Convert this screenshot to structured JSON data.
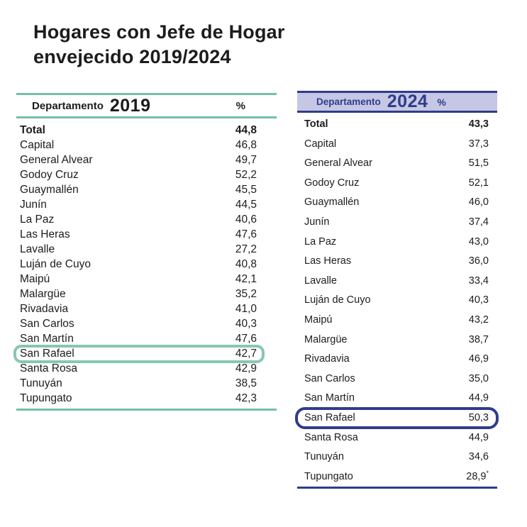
{
  "title": "Hogares con Jefe de Hogar envejecido 2019/2024",
  "colors": {
    "teal": "#74c0a3",
    "teal_hl": "#87c7af",
    "navy": "#2f3c8d",
    "lavender": "#c6c7e4",
    "text": "#1c1c1c"
  },
  "tables": [
    {
      "id": "rows-2019",
      "header": {
        "label": "Departamento",
        "year": "2019",
        "percent": "%"
      },
      "highlight": "San Rafael",
      "rows": [
        {
          "name": "Total",
          "value": "44,8",
          "bold": true
        },
        {
          "name": "Capital",
          "value": "46,8"
        },
        {
          "name": "General Alvear",
          "value": "49,7"
        },
        {
          "name": "Godoy Cruz",
          "value": "52,2"
        },
        {
          "name": "Guaymallén",
          "value": "45,5"
        },
        {
          "name": "Junín",
          "value": "44,5"
        },
        {
          "name": "La Paz",
          "value": "40,6"
        },
        {
          "name": "Las Heras",
          "value": "47,6"
        },
        {
          "name": "Lavalle",
          "value": "27,2"
        },
        {
          "name": "Luján de Cuyo",
          "value": "40,8"
        },
        {
          "name": "Maipú",
          "value": "42,1"
        },
        {
          "name": "Malargüe",
          "value": "35,2"
        },
        {
          "name": "Rivadavia",
          "value": "41,0"
        },
        {
          "name": "San Carlos",
          "value": "40,3"
        },
        {
          "name": "San Martín",
          "value": "47,6"
        },
        {
          "name": "San Rafael",
          "value": "42,7"
        },
        {
          "name": "Santa Rosa",
          "value": "42,9"
        },
        {
          "name": "Tunuyán",
          "value": "38,5"
        },
        {
          "name": "Tupungato",
          "value": "42,3"
        }
      ]
    },
    {
      "id": "rows-2024",
      "header": {
        "label": "Departamento",
        "year": "2024",
        "percent": "%"
      },
      "highlight": "San Rafael",
      "rows": [
        {
          "name": "Total",
          "value": "43,3",
          "bold": true
        },
        {
          "name": "Capital",
          "value": "37,3"
        },
        {
          "name": "General Alvear",
          "value": "51,5"
        },
        {
          "name": "Godoy Cruz",
          "value": "52,1"
        },
        {
          "name": "Guaymallén",
          "value": "46,0"
        },
        {
          "name": "Junín",
          "value": "37,4"
        },
        {
          "name": "La Paz",
          "value": "43,0"
        },
        {
          "name": "Las Heras",
          "value": "36,0"
        },
        {
          "name": "Lavalle",
          "value": "33,4"
        },
        {
          "name": "Luján de Cuyo",
          "value": "40,3"
        },
        {
          "name": "Maipú",
          "value": "43,2"
        },
        {
          "name": "Malargüe",
          "value": "38,7"
        },
        {
          "name": "Rivadavia",
          "value": "46,9"
        },
        {
          "name": "San Carlos",
          "value": "35,0"
        },
        {
          "name": "San Martín",
          "value": "44,9"
        },
        {
          "name": "San Rafael",
          "value": "50,3"
        },
        {
          "name": "Santa Rosa",
          "value": "44,9"
        },
        {
          "name": "Tunuyán",
          "value": "34,6"
        },
        {
          "name": "Tupungato",
          "value": "28,9",
          "note": "*"
        }
      ]
    }
  ],
  "chart_data": {
    "type": "table",
    "title": "Hogares con Jefe de Hogar envejecido 2019/2024",
    "categories": [
      "Total",
      "Capital",
      "General Alvear",
      "Godoy Cruz",
      "Guaymallén",
      "Junín",
      "La Paz",
      "Las Heras",
      "Lavalle",
      "Luján de Cuyo",
      "Maipú",
      "Malargüe",
      "Rivadavia",
      "San Carlos",
      "San Martín",
      "San Rafael",
      "Santa Rosa",
      "Tunuyán",
      "Tupungato"
    ],
    "series": [
      {
        "name": "2019",
        "values": [
          44.8,
          46.8,
          49.7,
          52.2,
          45.5,
          44.5,
          40.6,
          47.6,
          27.2,
          40.8,
          42.1,
          35.2,
          41.0,
          40.3,
          47.6,
          42.7,
          42.9,
          38.5,
          42.3
        ]
      },
      {
        "name": "2024",
        "values": [
          43.3,
          37.3,
          51.5,
          52.1,
          46.0,
          37.4,
          43.0,
          36.0,
          33.4,
          40.3,
          43.2,
          38.7,
          46.9,
          35.0,
          44.9,
          50.3,
          44.9,
          34.6,
          28.9
        ]
      }
    ],
    "ylabel": "%",
    "highlighted_category": "San Rafael",
    "footnote_marker": "Tupungato 2024 shown as 28,9*"
  }
}
